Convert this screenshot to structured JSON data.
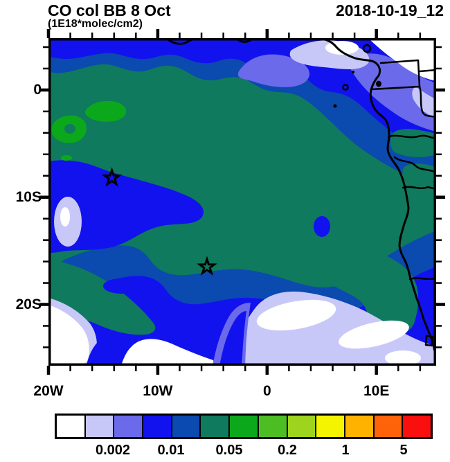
{
  "header": {
    "title": "CO col BB 8 Oct",
    "subtitle": "(1E18*molec/cm2)",
    "datetime": "2018-10-19_12"
  },
  "chart_data": {
    "type": "filled-contour-map",
    "title": "CO col BB 8 Oct",
    "units": "1E18*molec/cm2",
    "datetime_label": "2018-10-19_12",
    "region": {
      "lon_min": -20,
      "lon_max": 15.5,
      "lat_min": -25.7,
      "lat_max": 4.84
    },
    "x_axis": {
      "tick_labels": [
        "20W",
        "10W",
        "0",
        "10E"
      ],
      "tick_lons": [
        -20,
        -10,
        0,
        10
      ],
      "minor_step_deg": 2
    },
    "y_axis": {
      "tick_labels": [
        "0",
        "10S",
        "20S"
      ],
      "tick_lats": [
        0,
        -10,
        -20
      ],
      "minor_step_deg": 2
    },
    "colorbar": {
      "labels": [
        "0.002",
        "0.01",
        "0.05",
        "0.2",
        "1",
        "5"
      ],
      "labeled_boundary_indices": [
        2,
        4,
        6,
        8,
        10,
        12
      ],
      "levels": [
        0.001,
        0.002,
        0.005,
        0.01,
        0.02,
        0.05,
        0.1,
        0.2,
        0.5,
        1,
        2,
        5
      ],
      "cell_colors": [
        "#FFFFFF",
        "#C8C8F8",
        "#6A6AEA",
        "#1212EE",
        "#0B4AAE",
        "#0F7A5E",
        "#0CA81C",
        "#4CBE23",
        "#9ED41E",
        "#F4F400",
        "#FFB300",
        "#FF6309",
        "#FA0F0F"
      ]
    },
    "markers": [
      {
        "type": "star",
        "approx_lon": -14.2,
        "approx_lat": -8.2
      },
      {
        "type": "star",
        "approx_lon": -5.5,
        "approx_lat": -16.5
      }
    ]
  }
}
